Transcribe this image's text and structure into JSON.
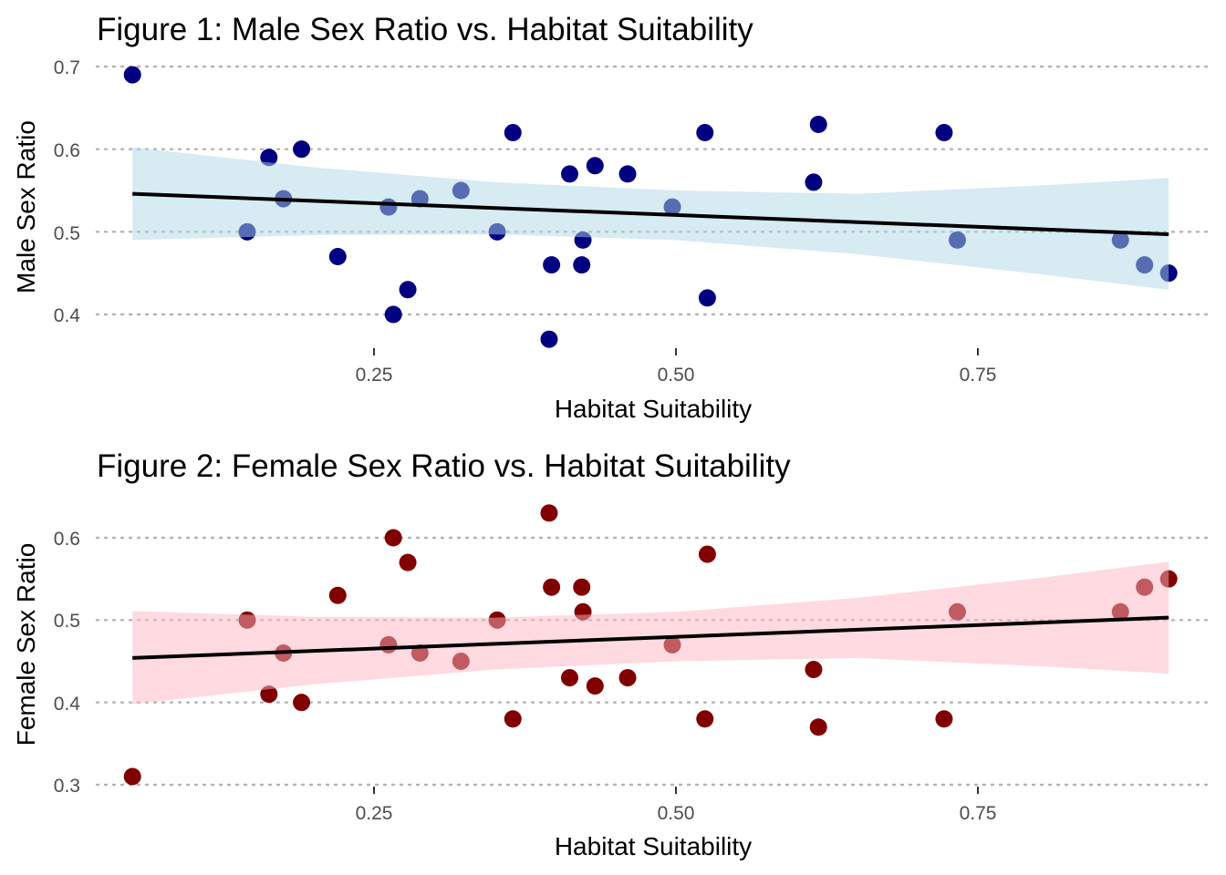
{
  "chart_data": [
    {
      "type": "scatter",
      "title": "Figure 1: Male Sex Ratio vs. Habitat Suitability",
      "xlabel": "Habitat Suitability",
      "ylabel": "Male Sex Ratio",
      "x_ticks": [
        "0.25",
        "0.50",
        "0.75"
      ],
      "y_ticks": [
        "0.4",
        "0.5",
        "0.6",
        "0.7"
      ],
      "xlim": [
        0.01,
        0.93
      ],
      "ylim": [
        0.37,
        0.7
      ],
      "grid": "horizontal dotted",
      "point_color": "#000080",
      "band_color": "#ADD8E6",
      "points": [
        {
          "x": 0.05,
          "y": 0.69
        },
        {
          "x": 0.145,
          "y": 0.5
        },
        {
          "x": 0.163,
          "y": 0.59
        },
        {
          "x": 0.175,
          "y": 0.54
        },
        {
          "x": 0.19,
          "y": 0.6
        },
        {
          "x": 0.22,
          "y": 0.47
        },
        {
          "x": 0.262,
          "y": 0.53
        },
        {
          "x": 0.266,
          "y": 0.4
        },
        {
          "x": 0.278,
          "y": 0.43
        },
        {
          "x": 0.288,
          "y": 0.54
        },
        {
          "x": 0.322,
          "y": 0.55
        },
        {
          "x": 0.352,
          "y": 0.5
        },
        {
          "x": 0.365,
          "y": 0.62
        },
        {
          "x": 0.395,
          "y": 0.37
        },
        {
          "x": 0.397,
          "y": 0.46
        },
        {
          "x": 0.412,
          "y": 0.57
        },
        {
          "x": 0.422,
          "y": 0.46
        },
        {
          "x": 0.423,
          "y": 0.49
        },
        {
          "x": 0.433,
          "y": 0.58
        },
        {
          "x": 0.46,
          "y": 0.57
        },
        {
          "x": 0.497,
          "y": 0.53
        },
        {
          "x": 0.524,
          "y": 0.62
        },
        {
          "x": 0.526,
          "y": 0.42
        },
        {
          "x": 0.614,
          "y": 0.56
        },
        {
          "x": 0.618,
          "y": 0.63
        },
        {
          "x": 0.722,
          "y": 0.62
        },
        {
          "x": 0.733,
          "y": 0.49
        },
        {
          "x": 0.868,
          "y": 0.49
        },
        {
          "x": 0.888,
          "y": 0.46
        },
        {
          "x": 0.908,
          "y": 0.45
        }
      ],
      "fit": {
        "x": [
          0.05,
          0.908
        ],
        "y": [
          0.546,
          0.497
        ]
      },
      "band": {
        "x": [
          0.05,
          0.2,
          0.35,
          0.5,
          0.65,
          0.8,
          0.908
        ],
        "lower": [
          0.49,
          0.496,
          0.497,
          0.49,
          0.473,
          0.449,
          0.43
        ],
        "upper": [
          0.602,
          0.578,
          0.56,
          0.55,
          0.546,
          0.556,
          0.565
        ]
      }
    },
    {
      "type": "scatter",
      "title": "Figure 2: Female Sex Ratio vs. Habitat Suitability",
      "xlabel": "Habitat Suitability",
      "ylabel": "Female Sex Ratio",
      "x_ticks": [
        "0.25",
        "0.50",
        "0.75"
      ],
      "y_ticks": [
        "0.3",
        "0.4",
        "0.5",
        "0.6"
      ],
      "xlim": [
        0.01,
        0.93
      ],
      "ylim": [
        0.31,
        0.63
      ],
      "grid": "horizontal dotted",
      "point_color": "#800000",
      "band_color": "#FFB6C1",
      "points": [
        {
          "x": 0.05,
          "y": 0.31
        },
        {
          "x": 0.145,
          "y": 0.5
        },
        {
          "x": 0.163,
          "y": 0.41
        },
        {
          "x": 0.175,
          "y": 0.46
        },
        {
          "x": 0.19,
          "y": 0.4
        },
        {
          "x": 0.22,
          "y": 0.53
        },
        {
          "x": 0.262,
          "y": 0.47
        },
        {
          "x": 0.266,
          "y": 0.6
        },
        {
          "x": 0.278,
          "y": 0.57
        },
        {
          "x": 0.288,
          "y": 0.46
        },
        {
          "x": 0.322,
          "y": 0.45
        },
        {
          "x": 0.352,
          "y": 0.5
        },
        {
          "x": 0.365,
          "y": 0.38
        },
        {
          "x": 0.395,
          "y": 0.63
        },
        {
          "x": 0.397,
          "y": 0.54
        },
        {
          "x": 0.412,
          "y": 0.43
        },
        {
          "x": 0.422,
          "y": 0.54
        },
        {
          "x": 0.423,
          "y": 0.51
        },
        {
          "x": 0.433,
          "y": 0.42
        },
        {
          "x": 0.46,
          "y": 0.43
        },
        {
          "x": 0.497,
          "y": 0.47
        },
        {
          "x": 0.524,
          "y": 0.38
        },
        {
          "x": 0.526,
          "y": 0.58
        },
        {
          "x": 0.614,
          "y": 0.44
        },
        {
          "x": 0.618,
          "y": 0.37
        },
        {
          "x": 0.722,
          "y": 0.38
        },
        {
          "x": 0.733,
          "y": 0.51
        },
        {
          "x": 0.868,
          "y": 0.51
        },
        {
          "x": 0.888,
          "y": 0.54
        },
        {
          "x": 0.908,
          "y": 0.55
        }
      ],
      "fit": {
        "x": [
          0.05,
          0.908
        ],
        "y": [
          0.454,
          0.503
        ]
      },
      "band": {
        "x": [
          0.05,
          0.2,
          0.35,
          0.5,
          0.65,
          0.8,
          0.908
        ],
        "lower": [
          0.398,
          0.422,
          0.44,
          0.45,
          0.454,
          0.444,
          0.435
        ],
        "upper": [
          0.511,
          0.504,
          0.503,
          0.51,
          0.527,
          0.551,
          0.571
        ]
      }
    }
  ]
}
